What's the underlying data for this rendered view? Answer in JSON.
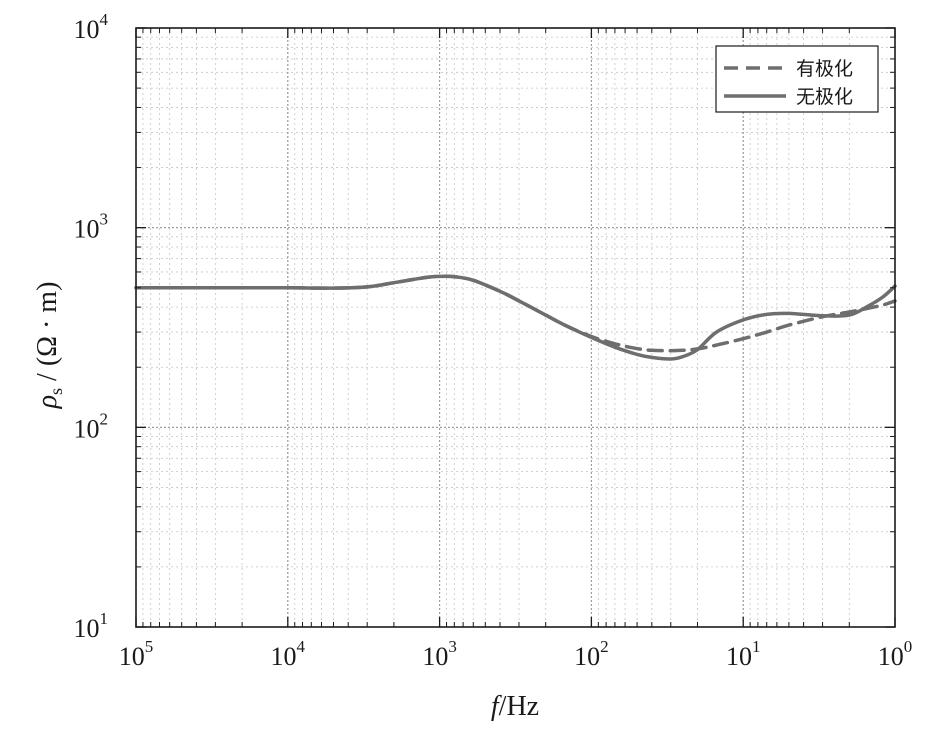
{
  "chart_data": {
    "type": "line",
    "x_scale": "log",
    "y_scale": "log",
    "x_reversed": true,
    "xlim": [
      100000,
      1
    ],
    "ylim": [
      10,
      10000
    ],
    "grid": true,
    "legend_position": "top-right",
    "xlabel": {
      "italic": "f",
      "rest": "/Hz"
    },
    "ylabel": {
      "symbol": "ρ",
      "sub": "s",
      "rest": " / (Ω · m)"
    },
    "x_ticks": [
      {
        "value": 100000,
        "base": "10",
        "exp": "5"
      },
      {
        "value": 10000,
        "base": "10",
        "exp": "4"
      },
      {
        "value": 1000,
        "base": "10",
        "exp": "3"
      },
      {
        "value": 100,
        "base": "10",
        "exp": "2"
      },
      {
        "value": 10,
        "base": "10",
        "exp": "1"
      },
      {
        "value": 1,
        "base": "10",
        "exp": "0"
      }
    ],
    "y_ticks": [
      {
        "value": 10,
        "base": "10",
        "exp": "1"
      },
      {
        "value": 100,
        "base": "10",
        "exp": "2"
      },
      {
        "value": 1000,
        "base": "10",
        "exp": "3"
      },
      {
        "value": 10000,
        "base": "10",
        "exp": "4"
      }
    ],
    "series": [
      {
        "name": "有极化",
        "style": "dashed",
        "color": "#6e6e6e",
        "x": [
          100000,
          50000,
          20000,
          10000,
          5000,
          3000,
          2000,
          1500,
          1200,
          1000,
          800,
          600,
          400,
          300,
          200,
          150,
          100,
          70,
          50,
          40,
          30,
          25,
          20,
          15,
          10,
          7,
          5,
          3,
          2,
          1.5,
          1.2,
          1
        ],
        "y": [
          500,
          500,
          500,
          500,
          498,
          505,
          530,
          550,
          565,
          570,
          568,
          545,
          480,
          430,
          365,
          325,
          285,
          262,
          248,
          243,
          242,
          243,
          247,
          258,
          278,
          300,
          325,
          358,
          378,
          395,
          410,
          430
        ]
      },
      {
        "name": "无极化",
        "style": "solid",
        "color": "#6e6e6e",
        "x": [
          100000,
          50000,
          20000,
          10000,
          5000,
          3000,
          2000,
          1500,
          1200,
          1000,
          800,
          600,
          400,
          300,
          200,
          150,
          100,
          70,
          50,
          40,
          30,
          25,
          20,
          15,
          10,
          7,
          5,
          3,
          2,
          1.5,
          1.2,
          1
        ],
        "y": [
          500,
          500,
          500,
          500,
          498,
          505,
          530,
          550,
          565,
          570,
          568,
          545,
          480,
          430,
          365,
          325,
          282,
          252,
          232,
          224,
          220,
          226,
          245,
          300,
          345,
          368,
          372,
          362,
          365,
          405,
          450,
          510
        ]
      }
    ]
  }
}
